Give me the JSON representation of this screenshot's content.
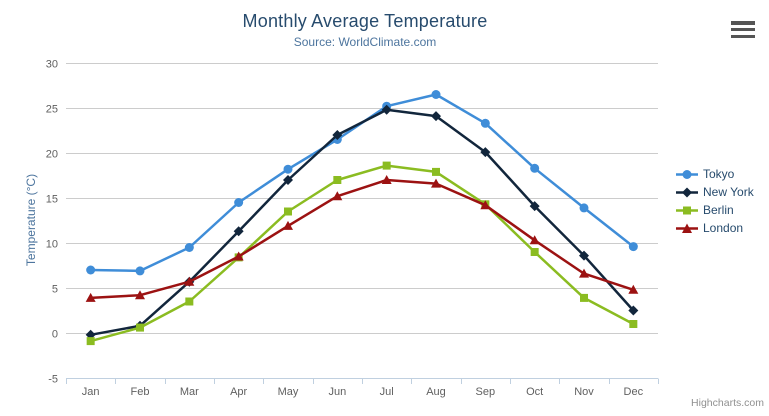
{
  "header": {
    "title": "Monthly Average Temperature",
    "subtitle": "Source: WorldClimate.com"
  },
  "credits": "Highcharts.com",
  "menu_icon": "context-menu-icon",
  "colors": {
    "title": "#274b6d",
    "subtitle": "#4d759e",
    "axis_labels": "#606060",
    "gridline": "#cccccc",
    "axis_line": "#c0d0e0",
    "legend_text": "#274b6d",
    "credits_text": "#909090"
  },
  "chart_data": {
    "type": "line",
    "title": "Monthly Average Temperature",
    "subtitle": "Source: WorldClimate.com",
    "categories": [
      "Jan",
      "Feb",
      "Mar",
      "Apr",
      "May",
      "Jun",
      "Jul",
      "Aug",
      "Sep",
      "Oct",
      "Nov",
      "Dec"
    ],
    "xlabel": "",
    "ylabel": "Temperature (°C)",
    "ylim": [
      -5,
      30
    ],
    "ytick_step": 5,
    "grid": true,
    "legend_position": "right",
    "series": [
      {
        "name": "Tokyo",
        "color": "#3f8dd8",
        "marker": "circle",
        "values": [
          7.0,
          6.9,
          9.5,
          14.5,
          18.2,
          21.5,
          25.2,
          26.5,
          23.3,
          18.3,
          13.9,
          9.6
        ]
      },
      {
        "name": "New York",
        "color": "#12263c",
        "marker": "diamond",
        "values": [
          -0.2,
          0.8,
          5.7,
          11.3,
          17.0,
          22.0,
          24.8,
          24.1,
          20.1,
          14.1,
          8.6,
          2.5
        ]
      },
      {
        "name": "Berlin",
        "color": "#8bbc21",
        "marker": "square",
        "values": [
          -0.9,
          0.6,
          3.5,
          8.4,
          13.5,
          17.0,
          18.6,
          17.9,
          14.3,
          9.0,
          3.9,
          1.0
        ]
      },
      {
        "name": "London",
        "color": "#9c1212",
        "marker": "triangle",
        "values": [
          3.9,
          4.2,
          5.7,
          8.5,
          11.9,
          15.2,
          17.0,
          16.6,
          14.2,
          10.3,
          6.6,
          4.8
        ]
      }
    ]
  }
}
